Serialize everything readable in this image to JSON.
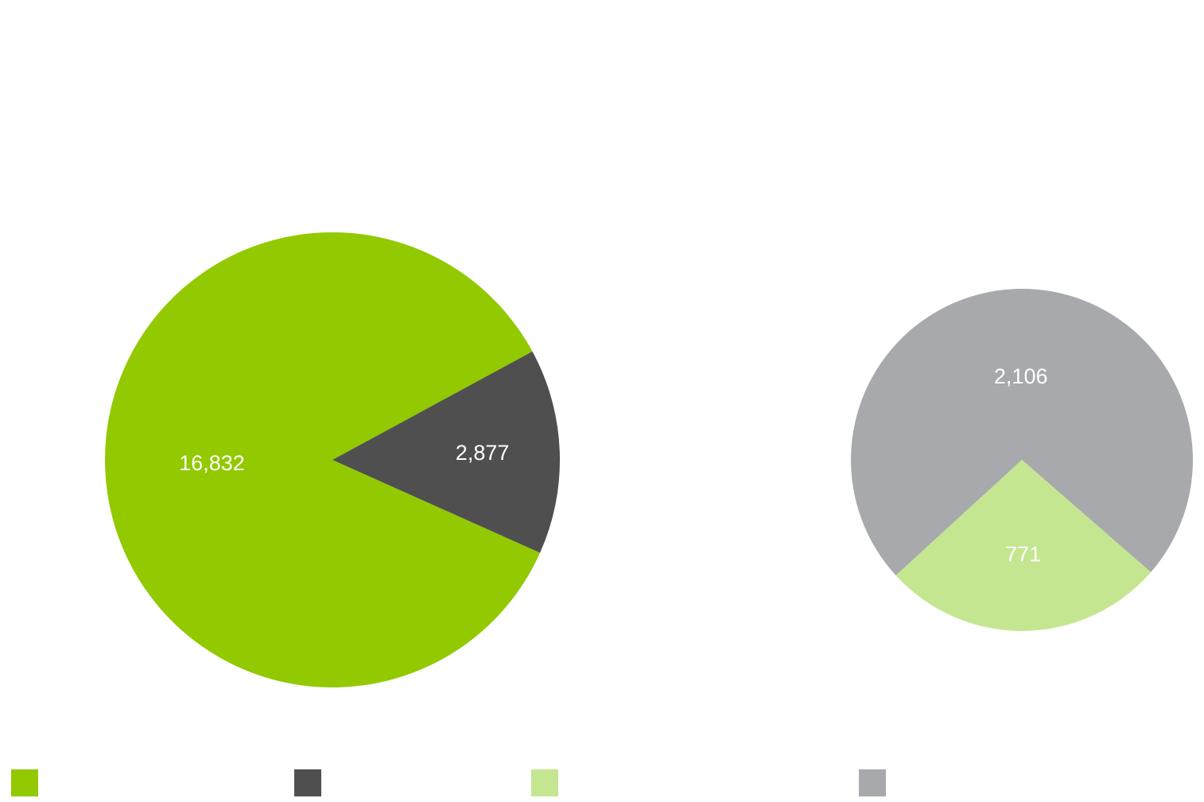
{
  "chart_data": [
    {
      "type": "pie",
      "slices": [
        {
          "value": 16832,
          "label": "16,832",
          "color": "#92c900"
        },
        {
          "value": 2877,
          "label": "2,877",
          "color": "#4f4f4f"
        }
      ]
    },
    {
      "type": "pie",
      "slices": [
        {
          "value": 2106,
          "label": "2,106",
          "color": "#a8a9ac"
        },
        {
          "value": 771,
          "label": "771",
          "color": "#c4e690"
        }
      ]
    }
  ],
  "legend": [
    {
      "color": "#92c900"
    },
    {
      "color": "#4f4f4f"
    },
    {
      "color": "#c4e690"
    },
    {
      "color": "#a8a9ac"
    }
  ]
}
